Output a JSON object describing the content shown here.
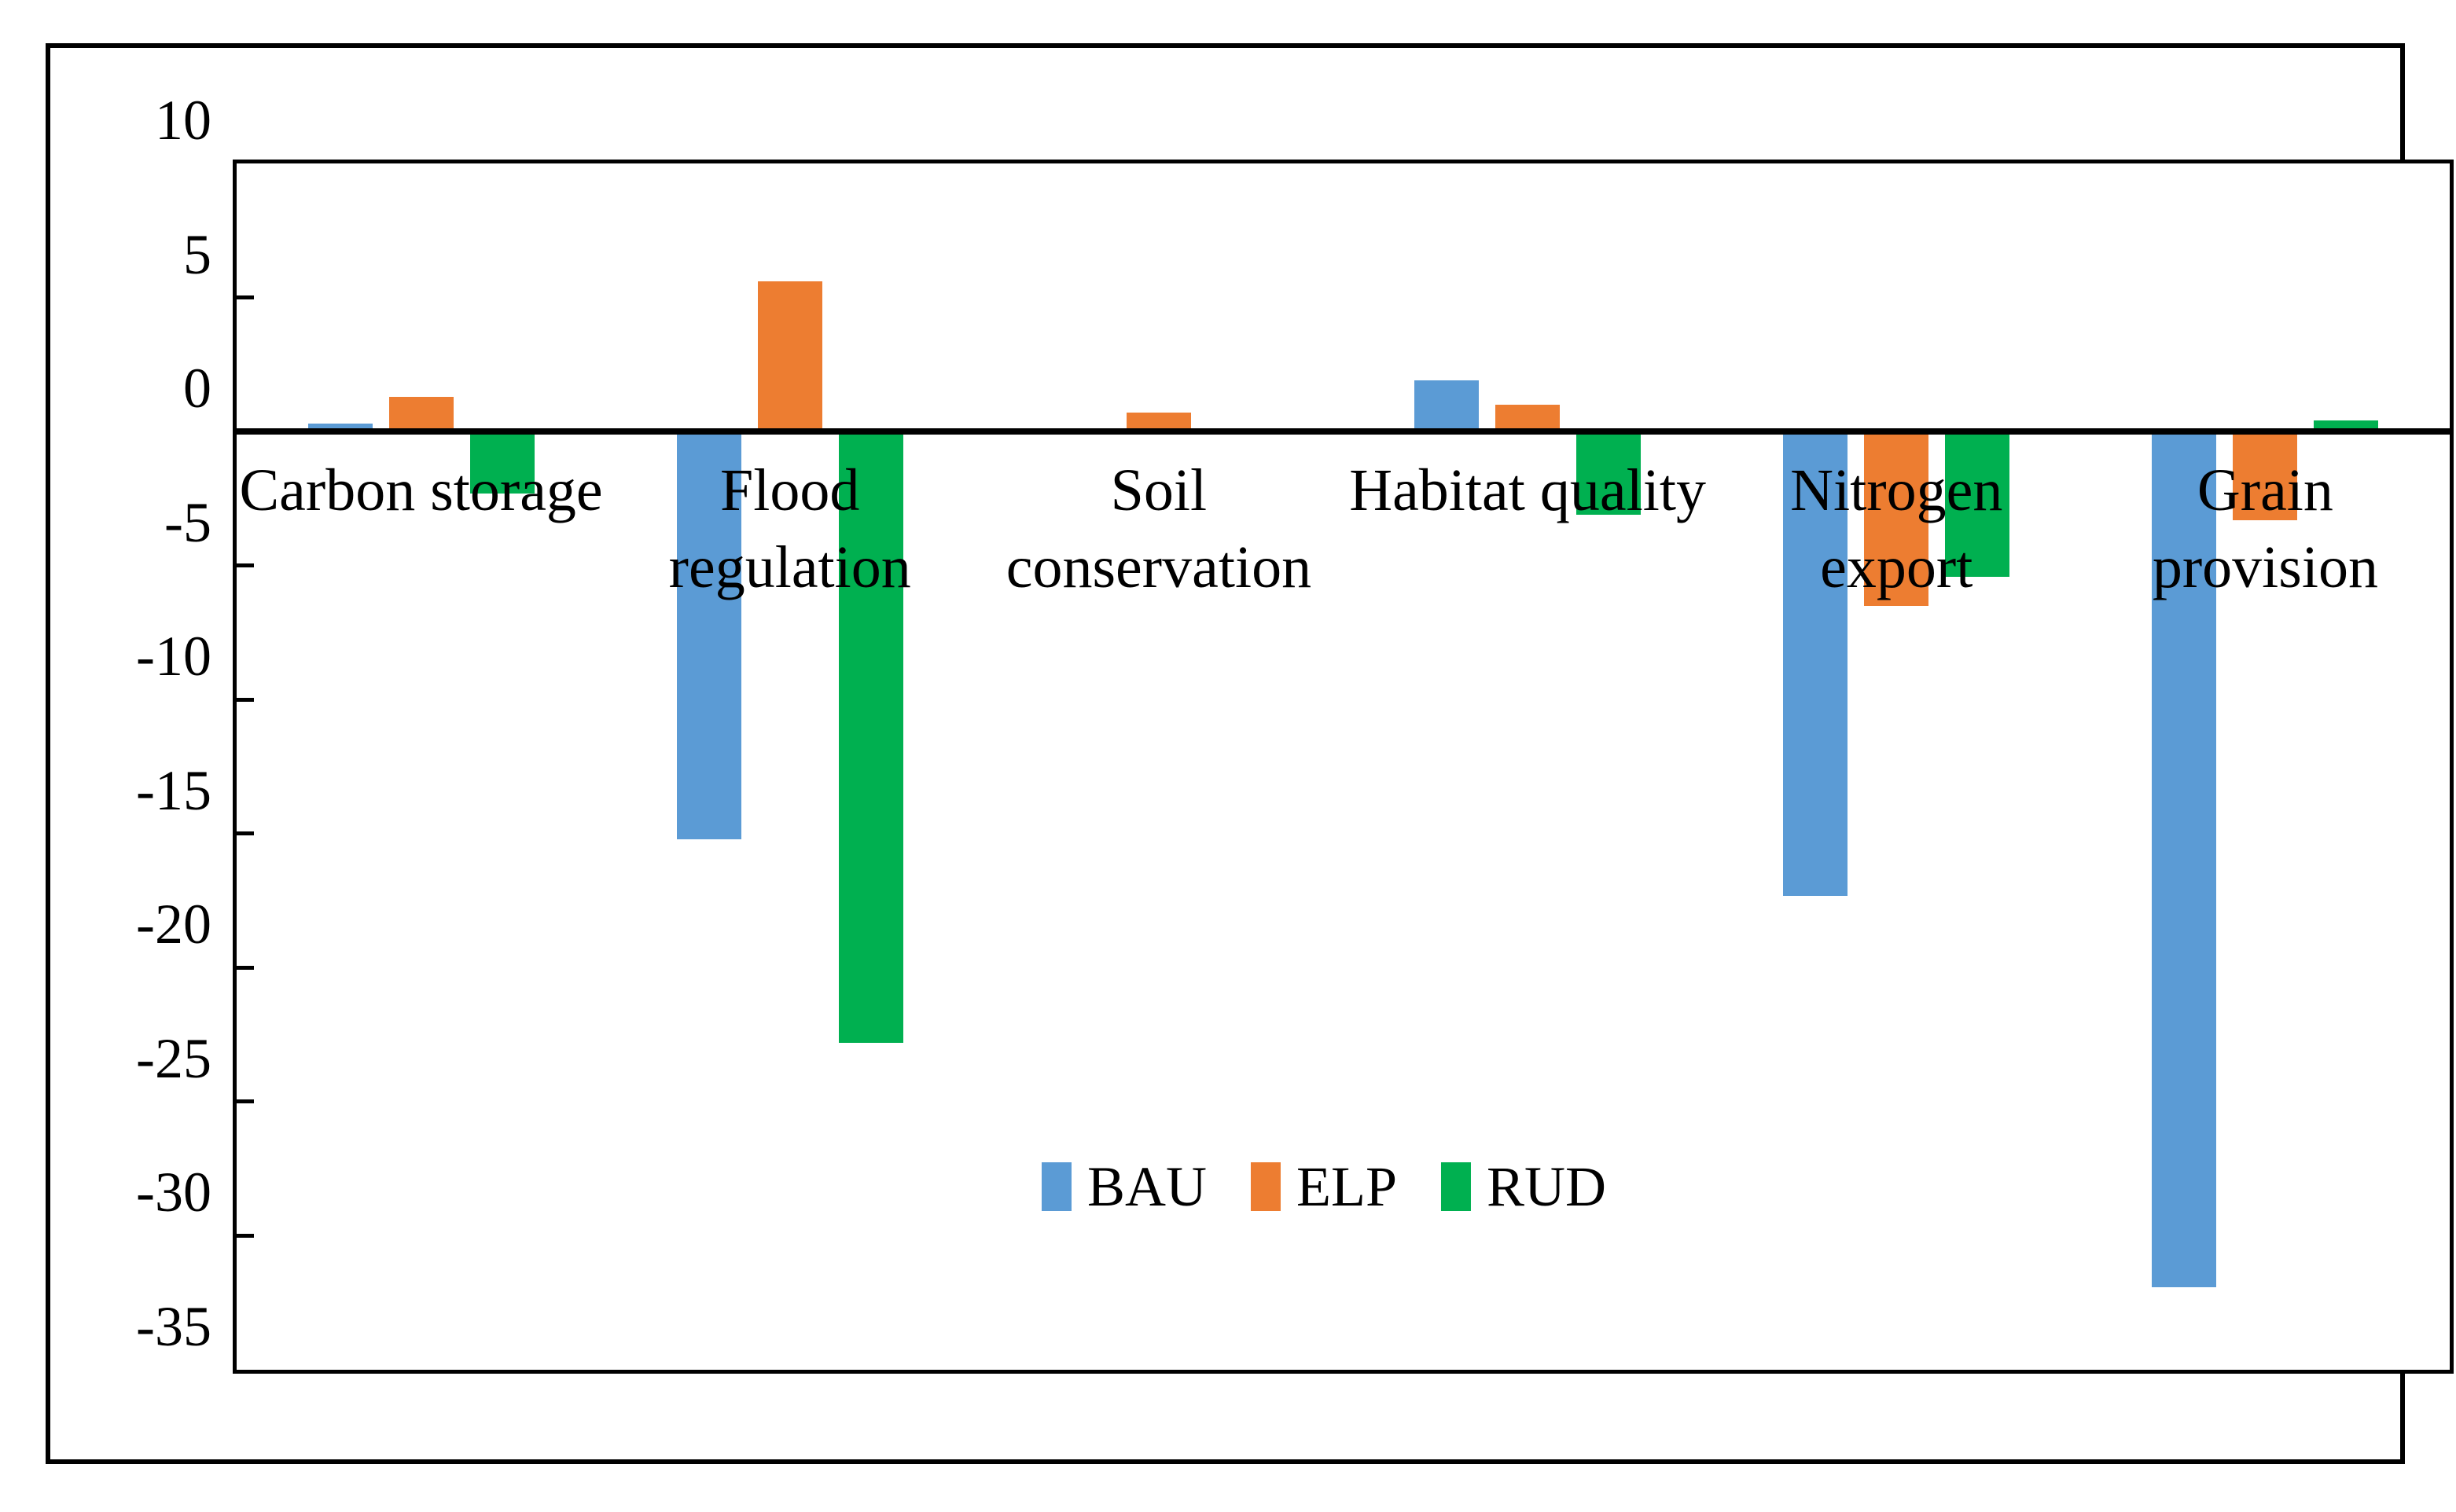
{
  "figure": {
    "background_color": "#FFFFFF",
    "border_color": "#000000"
  },
  "chart_data": {
    "type": "bar",
    "title": "",
    "xlabel": "",
    "ylabel": "",
    "grid": false,
    "ylim": [
      -35,
      10
    ],
    "yticks": [
      10,
      5,
      0,
      -5,
      -10,
      -15,
      -20,
      -25,
      -30,
      -35
    ],
    "ytick_labels": [
      "10",
      "5",
      "0",
      "-5",
      "-10",
      "-15",
      "-20",
      "-25",
      "-30",
      "-35"
    ],
    "categories": [
      "Carbon storage",
      "Flood regulation",
      "Soil conservation",
      "Habitat quality",
      "Nitrogen export",
      "Grain provision"
    ],
    "category_label_lines": [
      [
        "Carbon storage"
      ],
      [
        "Flood",
        "regulation"
      ],
      [
        "Soil",
        "conservation"
      ],
      [
        "Habitat quality"
      ],
      [
        "Nitrogen",
        "export"
      ],
      [
        "Grain",
        "provision"
      ]
    ],
    "series": [
      {
        "name": "BAU",
        "color": "#5B9BD5",
        "values": [
          0.3,
          -15.1,
          0.0,
          1.9,
          -17.2,
          -31.8
        ]
      },
      {
        "name": "ELP",
        "color": "#ED7D31",
        "values": [
          1.3,
          5.6,
          0.7,
          1.0,
          -6.4,
          -3.2
        ]
      },
      {
        "name": "RUD",
        "color": "#00B050",
        "values": [
          -2.2,
          -22.7,
          0.1,
          -3.0,
          -5.3,
          0.4
        ]
      }
    ],
    "legend": {
      "entries": [
        "BAU",
        "ELP",
        "RUD"
      ],
      "position": "inside-center"
    }
  }
}
